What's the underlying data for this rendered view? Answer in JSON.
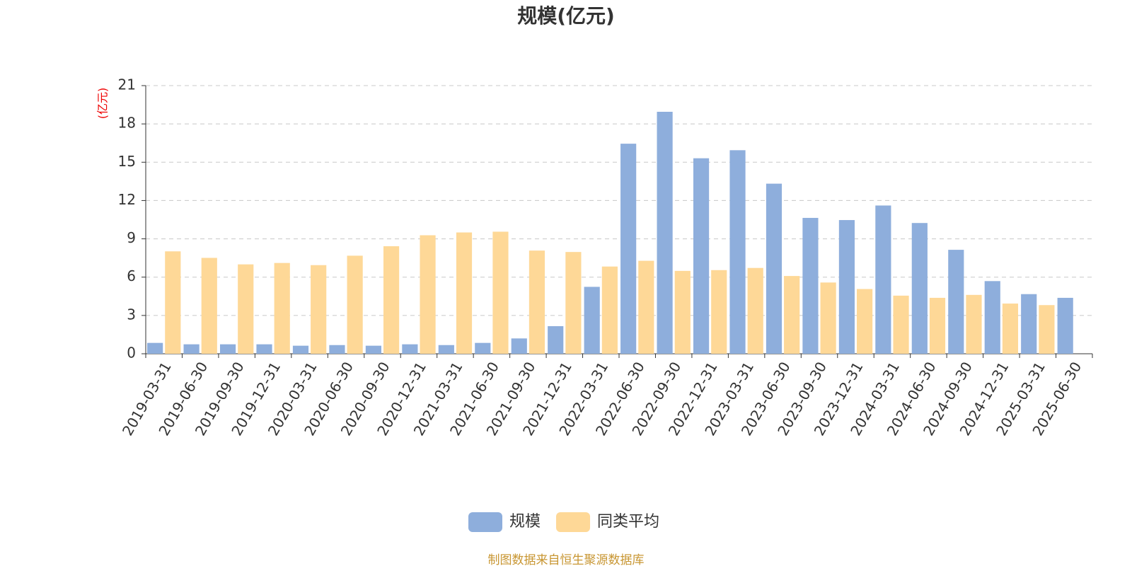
{
  "chart_data": {
    "type": "bar",
    "title": "规模(亿元)",
    "y_axis_label": "(亿元)",
    "categories": [
      "2019-03-31",
      "2019-06-30",
      "2019-09-30",
      "2019-12-31",
      "2020-03-31",
      "2020-06-30",
      "2020-09-30",
      "2020-12-31",
      "2021-03-31",
      "2021-06-30",
      "2021-09-30",
      "2021-12-31",
      "2022-03-31",
      "2022-06-30",
      "2022-09-30",
      "2022-12-31",
      "2023-03-31",
      "2023-06-30",
      "2023-09-30",
      "2023-12-31",
      "2024-03-31",
      "2024-06-30",
      "2024-09-30",
      "2024-12-31",
      "2025-03-31",
      "2025-06-30"
    ],
    "series": [
      {
        "name": "规模",
        "color": "#8eaedc",
        "values": [
          0.85,
          0.74,
          0.74,
          0.74,
          0.63,
          0.68,
          0.63,
          0.74,
          0.68,
          0.85,
          1.2,
          2.16,
          5.24,
          16.45,
          18.95,
          15.31,
          15.94,
          13.32,
          10.64,
          10.47,
          11.61,
          10.24,
          8.14,
          5.69,
          4.67,
          4.38
        ]
      },
      {
        "name": "同类平均",
        "color": "#fed897",
        "values": [
          8.02,
          7.51,
          7.0,
          7.11,
          6.94,
          7.68,
          8.42,
          9.28,
          9.5,
          9.56,
          8.08,
          7.97,
          6.83,
          7.28,
          6.49,
          6.55,
          6.72,
          6.09,
          5.58,
          5.07,
          4.55,
          4.38,
          4.61,
          3.93,
          3.81,
          null
        ]
      }
    ],
    "ylim": [
      0,
      21
    ],
    "yticks": [
      0,
      3,
      6,
      9,
      12,
      15,
      18,
      21
    ],
    "grid": true,
    "legend": "bottom",
    "source": "制图数据来自恒生聚源数据库"
  }
}
